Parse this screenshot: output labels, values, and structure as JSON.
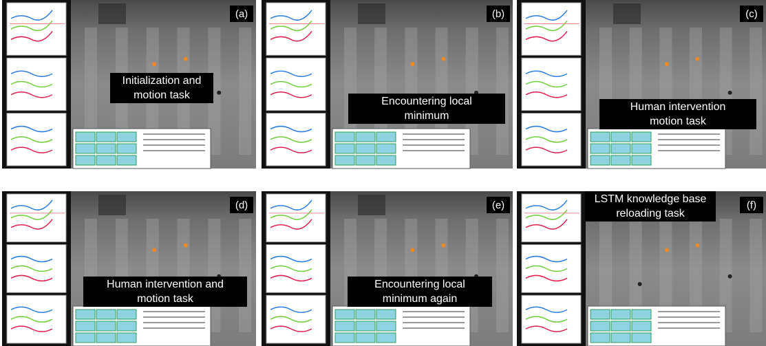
{
  "panels": [
    {
      "label": "(a)",
      "caption": [
        "Initialization and",
        "motion task"
      ]
    },
    {
      "label": "(b)",
      "caption": [
        "Encountering local",
        "minimum"
      ]
    },
    {
      "label": "(c)",
      "caption": [
        "Human intervention",
        "motion task"
      ]
    },
    {
      "label": "(d)",
      "caption": [
        "Human intervention and",
        "motion task"
      ]
    },
    {
      "label": "(e)",
      "caption": [
        "Encountering local",
        "minimum again"
      ]
    },
    {
      "label": "(f)",
      "caption": [
        "LSTM knowledge base",
        "reloading task"
      ]
    }
  ]
}
